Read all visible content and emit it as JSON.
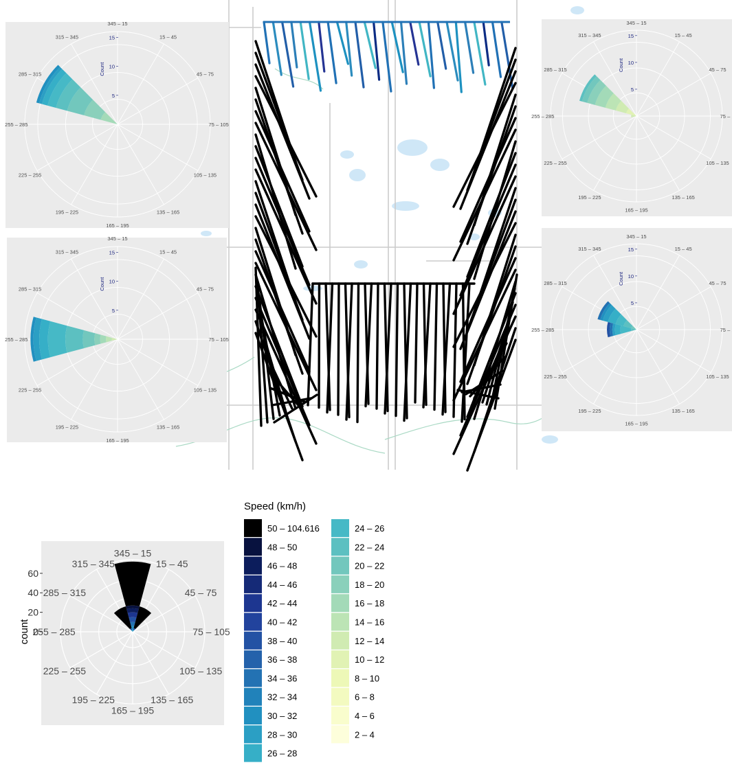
{
  "direction_labels": [
    "345 – 15",
    "15 – 45",
    "45 – 75",
    "75 – 105",
    "105 – 135",
    "135 – 165",
    "165 – 195",
    "195 – 225",
    "225 – 255",
    "255 – 285",
    "285 – 315",
    "315 – 345"
  ],
  "colors": {
    "panel_bg": "#ebebeb",
    "grid": "#ffffff",
    "track": "#000000",
    "map_bg": "#ffffff",
    "water": "#cfe7f7",
    "road": "#cccccc",
    "river": "#a9d9c4"
  },
  "legend": {
    "title": "Speed (km/h)",
    "bins": [
      {
        "label": "50 – 104.616",
        "color": "#000000"
      },
      {
        "label": "48 – 50",
        "color": "#08123f"
      },
      {
        "label": "46 – 48",
        "color": "#0c1d5c"
      },
      {
        "label": "44 – 46",
        "color": "#152a77"
      },
      {
        "label": "42 – 44",
        "color": "#1d3690"
      },
      {
        "label": "40 – 42",
        "color": "#22439d"
      },
      {
        "label": "38 – 40",
        "color": "#2352a4"
      },
      {
        "label": "36 – 38",
        "color": "#2462ab"
      },
      {
        "label": "34 – 36",
        "color": "#2372b3"
      },
      {
        "label": "32 – 34",
        "color": "#2182ba"
      },
      {
        "label": "30 – 32",
        "color": "#2190c0"
      },
      {
        "label": "28 – 30",
        "color": "#2b9fc4"
      },
      {
        "label": "26 – 28",
        "color": "#36afc7"
      },
      {
        "label": "24 – 26",
        "color": "#46b9c6"
      },
      {
        "label": "22 – 24",
        "color": "#5cc0c1"
      },
      {
        "label": "20 – 22",
        "color": "#72c7bd"
      },
      {
        "label": "18 – 20",
        "color": "#8ad0bb"
      },
      {
        "label": "16 – 18",
        "color": "#a3dab8"
      },
      {
        "label": "14 – 16",
        "color": "#bce4b5"
      },
      {
        "label": "12 – 14",
        "color": "#d0ebb2"
      },
      {
        "label": "10 – 12",
        "color": "#e1f2b4"
      },
      {
        "label": "8 – 10",
        "color": "#edf8b7"
      },
      {
        "label": "6 – 8",
        "color": "#f3fac0"
      },
      {
        "label": "4 – 6",
        "color": "#f9fdcd"
      },
      {
        "label": "2 – 4",
        "color": "#fdfedb"
      }
    ]
  },
  "chart_data": [
    {
      "type": "pie",
      "subtype": "wind-rose",
      "position": "top-left",
      "ylabel": "Count",
      "radial_ticks": [
        5,
        10,
        15
      ],
      "rmax": 16,
      "sectors": [
        {
          "direction": "285 – 315",
          "stack": [
            {
              "bin": "16 – 18",
              "count": 3
            },
            {
              "bin": "18 – 20",
              "count": 3
            },
            {
              "bin": "20 – 22",
              "count": 3
            },
            {
              "bin": "22 – 24",
              "count": 2
            },
            {
              "bin": "24 – 26",
              "count": 1.5
            },
            {
              "bin": "26 – 28",
              "count": 1
            },
            {
              "bin": "28 – 30",
              "count": 0.5
            },
            {
              "bin": "30 – 32",
              "count": 0.5
            }
          ]
        }
      ]
    },
    {
      "type": "pie",
      "subtype": "wind-rose",
      "position": "top-right",
      "ylabel": "Count",
      "radial_ticks": [
        5,
        10,
        15
      ],
      "rmax": 16,
      "sectors": [
        {
          "direction": "255 – 285",
          "stack": [
            {
              "bin": "12 – 14",
              "count": 1
            }
          ]
        },
        {
          "direction": "285 – 315",
          "stack": [
            {
              "bin": "10 – 12",
              "count": 2
            },
            {
              "bin": "12 – 14",
              "count": 2
            },
            {
              "bin": "14 – 16",
              "count": 2
            },
            {
              "bin": "16 – 18",
              "count": 2
            },
            {
              "bin": "18 – 20",
              "count": 1.5
            },
            {
              "bin": "20 – 22",
              "count": 1
            },
            {
              "bin": "22 – 24",
              "count": 0.5
            }
          ]
        }
      ]
    },
    {
      "type": "pie",
      "subtype": "wind-rose",
      "position": "middle-left",
      "ylabel": "Count",
      "radial_ticks": [
        5,
        10,
        15
      ],
      "rmax": 16,
      "sectors": [
        {
          "direction": "255 – 285",
          "stack": [
            {
              "bin": "12 – 14",
              "count": 1
            },
            {
              "bin": "14 – 16",
              "count": 1
            },
            {
              "bin": "16 – 18",
              "count": 1
            },
            {
              "bin": "18 – 20",
              "count": 1
            },
            {
              "bin": "20 – 22",
              "count": 2
            },
            {
              "bin": "22 – 24",
              "count": 3
            },
            {
              "bin": "24 – 26",
              "count": 3
            },
            {
              "bin": "26 – 28",
              "count": 1.5
            },
            {
              "bin": "28 – 30",
              "count": 1
            },
            {
              "bin": "30 – 32",
              "count": 0.5
            }
          ]
        }
      ]
    },
    {
      "type": "pie",
      "subtype": "wind-rose",
      "position": "middle-right",
      "ylabel": "Count",
      "radial_ticks": [
        5,
        10,
        15
      ],
      "rmax": 16,
      "sectors": [
        {
          "direction": "255 – 285",
          "stack": [
            {
              "bin": "22 – 24",
              "count": 1
            },
            {
              "bin": "24 – 26",
              "count": 2
            },
            {
              "bin": "26 – 28",
              "count": 1
            },
            {
              "bin": "28 – 30",
              "count": 0.5
            },
            {
              "bin": "34 – 36",
              "count": 0.5
            },
            {
              "bin": "38 – 40",
              "count": 0.5
            }
          ]
        },
        {
          "direction": "285 – 315",
          "stack": [
            {
              "bin": "20 – 22",
              "count": 1
            },
            {
              "bin": "22 – 24",
              "count": 1.5
            },
            {
              "bin": "24 – 26",
              "count": 1.5
            },
            {
              "bin": "26 – 28",
              "count": 1.5
            },
            {
              "bin": "28 – 30",
              "count": 1
            },
            {
              "bin": "30 – 32",
              "count": 0.5
            },
            {
              "bin": "34 – 36",
              "count": 0.5
            }
          ]
        }
      ]
    },
    {
      "type": "pie",
      "subtype": "wind-rose",
      "position": "bottom-left",
      "ylabel": "count",
      "radial_ticks": [
        0,
        20,
        40,
        60
      ],
      "rmax": 74,
      "sectors": [
        {
          "direction": "345 – 15",
          "stack": [
            {
              "bin": "26 – 28",
              "count": 2
            },
            {
              "bin": "30 – 32",
              "count": 4
            },
            {
              "bin": "34 – 36",
              "count": 4
            },
            {
              "bin": "38 – 40",
              "count": 5
            },
            {
              "bin": "42 – 44",
              "count": 5
            },
            {
              "bin": "46 – 48",
              "count": 4
            },
            {
              "bin": "48 – 50",
              "count": 3
            },
            {
              "bin": "50 – 104.616",
              "count": 45
            }
          ]
        },
        {
          "direction": "15 – 45",
          "stack": [
            {
              "bin": "30 – 32",
              "count": 2
            },
            {
              "bin": "38 – 40",
              "count": 2
            },
            {
              "bin": "50 – 104.616",
              "count": 23
            }
          ]
        },
        {
          "direction": "315 – 345",
          "stack": [
            {
              "bin": "30 – 32",
              "count": 2
            },
            {
              "bin": "38 – 40",
              "count": 2
            },
            {
              "bin": "50 – 104.616",
              "count": 23
            }
          ]
        }
      ]
    }
  ]
}
